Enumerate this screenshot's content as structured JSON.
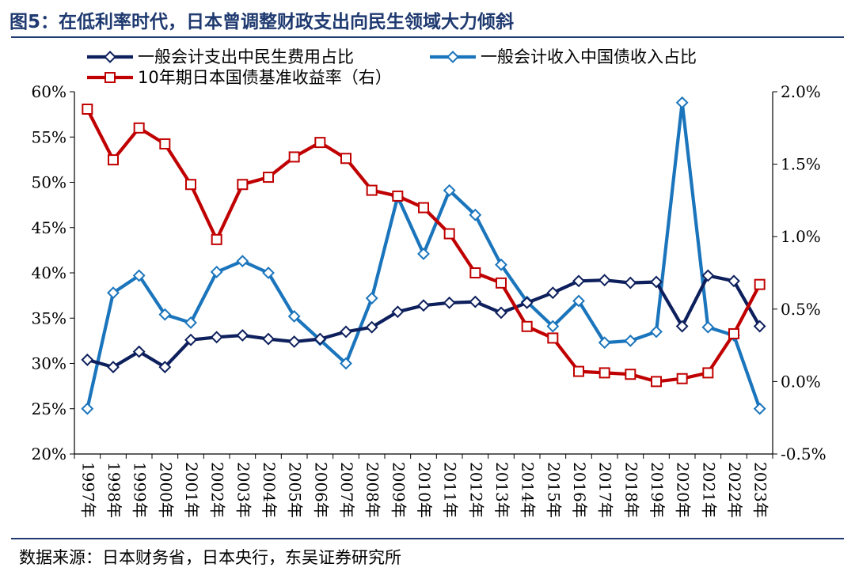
{
  "header": {
    "title": "图5：在低利率时代，日本曾调整财政支出向民生领域大力倾斜"
  },
  "footer": {
    "source": "数据来源：日本财务省，日本央行，东吴证券研究所"
  },
  "chart_data": {
    "type": "line",
    "x": [
      "1997年",
      "1998年",
      "1999年",
      "2000年",
      "2001年",
      "2002年",
      "2003年",
      "2004年",
      "2005年",
      "2006年",
      "2007年",
      "2008年",
      "2009年",
      "2010年",
      "2011年",
      "2012年",
      "2013年",
      "2014年",
      "2015年",
      "2016年",
      "2017年",
      "2018年",
      "2019年",
      "2020年",
      "2021年",
      "2022年",
      "2023年"
    ],
    "yleft": {
      "ticks": [
        "60%",
        "55%",
        "50%",
        "45%",
        "40%",
        "35%",
        "30%",
        "25%",
        "20%"
      ],
      "range": [
        20,
        60
      ],
      "unit": "%"
    },
    "yright": {
      "ticks": [
        "2.0%",
        "1.5%",
        "1.0%",
        "0.5%",
        "0.0%",
        "-0.5%"
      ],
      "range": [
        -0.5,
        2.0
      ],
      "unit": "%"
    },
    "series": [
      {
        "name": "一般会计支出中民生费用占比",
        "axis": "left",
        "color": "#0d1f5c",
        "marker": "diamond",
        "values": [
          30.4,
          29.6,
          31.3,
          29.6,
          32.6,
          32.9,
          33.1,
          32.7,
          32.4,
          32.7,
          33.5,
          34.0,
          35.7,
          36.4,
          36.7,
          36.8,
          35.6,
          36.7,
          37.8,
          39.1,
          39.2,
          38.9,
          39.0,
          34.1,
          39.7,
          39.1,
          34.1
        ]
      },
      {
        "name": "一般会计收入中国债收入占比",
        "axis": "left",
        "color": "#1b75bc",
        "marker": "diamond",
        "values": [
          25.0,
          37.8,
          39.7,
          35.4,
          34.5,
          40.1,
          41.3,
          40.0,
          35.2,
          32.6,
          30.0,
          37.2,
          48.4,
          42.1,
          49.1,
          46.4,
          40.9,
          36.8,
          34.1,
          36.9,
          32.3,
          32.5,
          33.5,
          58.8,
          34.0,
          33.1,
          25.0
        ]
      },
      {
        "name": "10年期日本国债基准收益率（右）",
        "axis": "right",
        "color": "#c00000",
        "marker": "square",
        "values": [
          1.88,
          1.53,
          1.75,
          1.64,
          1.36,
          0.98,
          1.36,
          1.41,
          1.55,
          1.65,
          1.54,
          1.32,
          1.28,
          1.2,
          1.02,
          0.75,
          0.68,
          0.38,
          0.3,
          0.07,
          0.06,
          0.05,
          0.0,
          0.02,
          0.06,
          0.33,
          0.67
        ]
      }
    ]
  }
}
